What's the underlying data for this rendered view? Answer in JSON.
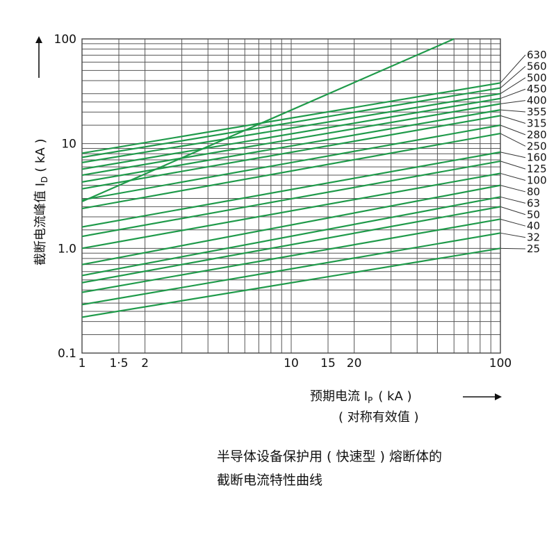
{
  "chart_data": {
    "type": "line",
    "x_scale": "log",
    "y_scale": "log",
    "xlim": [
      1,
      100
    ],
    "ylim": [
      0.1,
      100
    ],
    "grid": true,
    "x_ticks": [
      "1",
      "1·5",
      "2",
      "10",
      "15",
      "20",
      "100"
    ],
    "y_ticks": [
      "100",
      "10",
      "1.0",
      "0.1"
    ],
    "ylabel": "截断电流峰值 I",
    "ylabel_sub": "D",
    "ylabel_unit": "( kA )",
    "xlabel": "预期电流 I",
    "xlabel_sub": "P",
    "xlabel_unit": "( kA )",
    "xlabel_line2": "( 对称有效值 )",
    "limit_line": {
      "x": [
        1,
        60
      ],
      "y": [
        2.8,
        100
      ]
    },
    "series": [
      {
        "name": "630",
        "x": [
          1,
          100
        ],
        "y": [
          8.1,
          38
        ]
      },
      {
        "name": "560",
        "x": [
          1,
          100
        ],
        "y": [
          7.4,
          34
        ]
      },
      {
        "name": "500",
        "x": [
          1,
          100
        ],
        "y": [
          6.6,
          30
        ]
      },
      {
        "name": "450",
        "x": [
          1,
          100
        ],
        "y": [
          5.7,
          27
        ]
      },
      {
        "name": "400",
        "x": [
          1,
          100
        ],
        "y": [
          5.0,
          24
        ]
      },
      {
        "name": "355",
        "x": [
          1,
          100
        ],
        "y": [
          4.3,
          21
        ]
      },
      {
        "name": "315",
        "x": [
          1,
          100
        ],
        "y": [
          3.7,
          18.5
        ]
      },
      {
        "name": "280",
        "x": [
          1,
          100
        ],
        "y": [
          2.9,
          15
        ]
      },
      {
        "name": "250",
        "x": [
          1,
          100
        ],
        "y": [
          2.4,
          12.5
        ]
      },
      {
        "name": "160",
        "x": [
          1,
          100
        ],
        "y": [
          1.6,
          8.3
        ]
      },
      {
        "name": "125",
        "x": [
          1,
          100
        ],
        "y": [
          1.3,
          6.8
        ]
      },
      {
        "name": "100",
        "x": [
          1,
          100
        ],
        "y": [
          1.0,
          5.2
        ]
      },
      {
        "name": "80",
        "x": [
          1,
          100
        ],
        "y": [
          0.7,
          4.0
        ]
      },
      {
        "name": "63",
        "x": [
          1,
          100
        ],
        "y": [
          0.55,
          3.1
        ]
      },
      {
        "name": "50",
        "x": [
          1,
          100
        ],
        "y": [
          0.47,
          2.5
        ]
      },
      {
        "name": "40",
        "x": [
          1,
          100
        ],
        "y": [
          0.38,
          1.9
        ]
      },
      {
        "name": "32",
        "x": [
          1,
          100
        ],
        "y": [
          0.29,
          1.4
        ]
      },
      {
        "name": "25",
        "x": [
          1,
          100
        ],
        "y": [
          0.22,
          1.0
        ]
      }
    ]
  },
  "caption": {
    "line1": "半导体设备保护用 ( 快速型 ) 熔断体的",
    "line2": "截断电流特性曲线"
  }
}
